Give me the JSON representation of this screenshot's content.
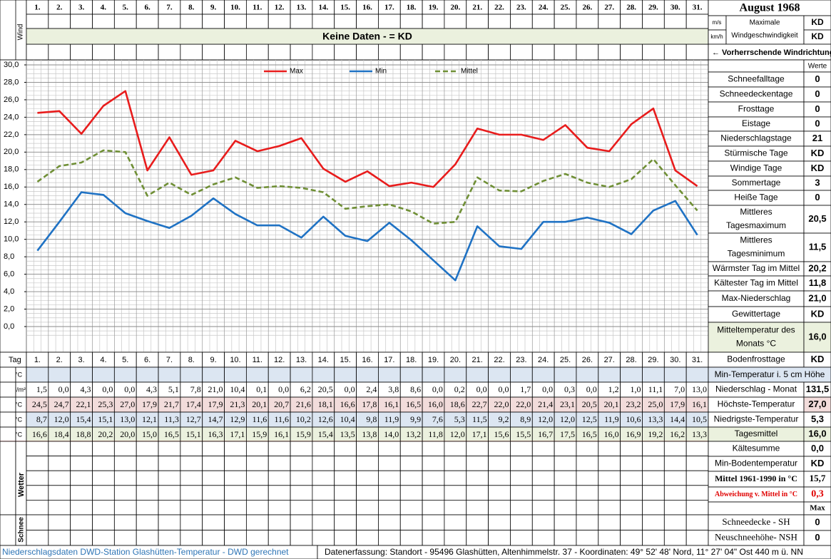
{
  "title": "August 1968",
  "wind": {
    "label": "Wind",
    "unit_ms": "m/s",
    "unit_kmh": "km/h",
    "max_label": [
      "Maximale",
      "Windgeschwindigkeit"
    ],
    "value_ms": "KD",
    "value_kmh": "KD",
    "no_data": "Keine Daten -  = KD",
    "direction": "← Vorherrschende Windrichtung"
  },
  "chart_data": {
    "type": "line",
    "categories": [
      "1.",
      "2.",
      "3.",
      "4.",
      "5.",
      "6.",
      "7.",
      "8.",
      "9.",
      "10.",
      "11.",
      "12.",
      "13.",
      "14.",
      "15.",
      "16.",
      "17.",
      "18.",
      "19.",
      "20.",
      "21.",
      "22.",
      "23.",
      "24.",
      "25.",
      "26.",
      "27.",
      "28.",
      "29.",
      "30.",
      "31."
    ],
    "series": [
      {
        "name": "Max",
        "color": "#e81c1c",
        "dash": false,
        "values": [
          24.5,
          24.7,
          22.1,
          25.3,
          27.0,
          17.9,
          21.7,
          17.4,
          17.9,
          21.3,
          20.1,
          20.7,
          21.6,
          18.1,
          16.6,
          17.8,
          16.1,
          16.5,
          16.0,
          18.6,
          22.7,
          22.0,
          22.0,
          21.4,
          23.1,
          20.5,
          20.1,
          23.2,
          25.0,
          17.9,
          16.1
        ],
        "value_labels": [
          "24,5",
          "24,7",
          "22,1",
          "25,3",
          "27,0",
          "17,9",
          "21,7",
          "17,4",
          "17,9",
          "21,3",
          "20,1",
          "20,7",
          "21,6",
          "18,1",
          "16,6",
          "17,8",
          "16,1",
          "16,5",
          "16,0",
          "18,6",
          "22,7",
          "22,0",
          "22,0",
          "21,4",
          "23,1",
          "20,5",
          "20,1",
          "23,2",
          "25,0",
          "17,9",
          "16,1"
        ]
      },
      {
        "name": "Min",
        "color": "#1f72c4",
        "dash": false,
        "values": [
          8.7,
          12.0,
          15.4,
          15.1,
          13.0,
          12.1,
          11.3,
          12.7,
          14.7,
          12.9,
          11.6,
          11.6,
          10.2,
          12.6,
          10.4,
          9.8,
          11.9,
          9.9,
          7.6,
          5.3,
          11.5,
          9.2,
          8.9,
          12.0,
          12.0,
          12.5,
          11.9,
          10.6,
          13.3,
          14.4,
          10.5
        ],
        "value_labels": [
          "8,7",
          "12,0",
          "15,4",
          "15,1",
          "13,0",
          "12,1",
          "11,3",
          "12,7",
          "14,7",
          "12,9",
          "11,6",
          "11,6",
          "10,2",
          "12,6",
          "10,4",
          "9,8",
          "11,9",
          "9,9",
          "7,6",
          "5,3",
          "11,5",
          "9,2",
          "8,9",
          "12,0",
          "12,0",
          "12,5",
          "11,9",
          "10,6",
          "13,3",
          "14,4",
          "10,5"
        ]
      },
      {
        "name": "Mittel",
        "color": "#6f8f35",
        "dash": true,
        "values": [
          16.6,
          18.4,
          18.8,
          20.2,
          20.0,
          15.0,
          16.5,
          15.1,
          16.3,
          17.1,
          15.9,
          16.1,
          15.9,
          15.4,
          13.5,
          13.8,
          14.0,
          13.2,
          11.8,
          12.0,
          17.1,
          15.6,
          15.5,
          16.7,
          17.5,
          16.5,
          16.0,
          16.9,
          19.2,
          16.2,
          13.3
        ],
        "value_labels": [
          "16,6",
          "18,4",
          "18,8",
          "20,2",
          "20,0",
          "15,0",
          "16,5",
          "15,1",
          "16,3",
          "17,1",
          "15,9",
          "16,1",
          "15,9",
          "15,4",
          "13,5",
          "13,8",
          "14,0",
          "13,2",
          "11,8",
          "12,0",
          "17,1",
          "15,6",
          "15,5",
          "16,7",
          "17,5",
          "16,5",
          "16,0",
          "16,9",
          "19,2",
          "16,2",
          "13,3"
        ]
      }
    ],
    "ylim": [
      0,
      30
    ],
    "yticks": [
      {
        "value": 0,
        "label": "0,0"
      },
      {
        "value": 2,
        "label": "2,0"
      },
      {
        "value": 4,
        "label": "4,0"
      },
      {
        "value": 6,
        "label": "6,0"
      },
      {
        "value": 8,
        "label": "8,0"
      },
      {
        "value": 10,
        "label": "10,0"
      },
      {
        "value": 12,
        "label": "12,0"
      },
      {
        "value": 14,
        "label": "14,0"
      },
      {
        "value": 16,
        "label": "16,0"
      },
      {
        "value": 18,
        "label": "18,0"
      },
      {
        "value": 20,
        "label": "20,0"
      },
      {
        "value": 22,
        "label": "22,0"
      },
      {
        "value": 24,
        "label": "24,0"
      },
      {
        "value": 26,
        "label": "26,0"
      },
      {
        "value": 28,
        "label": "28,0"
      },
      {
        "value": 30,
        "label": "30,0"
      }
    ],
    "grid": true,
    "legend": "top"
  },
  "rows": {
    "tag": "Tag",
    "unit_c": "°C",
    "unit_precip": "l/m²",
    "precip": [
      "1,5",
      "0,0",
      "4,3",
      "0,0",
      "0,0",
      "4,3",
      "5,1",
      "7,8",
      "21,0",
      "10,4",
      "0,1",
      "0,0",
      "6,2",
      "20,5",
      "0,0",
      "2,4",
      "3,8",
      "8,6",
      "0,0",
      "0,2",
      "0,0",
      "0,0",
      "1,7",
      "0,0",
      "0,3",
      "0,0",
      "1,2",
      "1,0",
      "11,1",
      "7,0",
      "13,0"
    ],
    "wetter": "Wetter",
    "schnee": "Schnee"
  },
  "panel": {
    "werte": "Werte",
    "stats": [
      {
        "label": [
          "Schneefalltage"
        ],
        "value": "0"
      },
      {
        "label": [
          "Schneedeckentage"
        ],
        "value": "0"
      },
      {
        "label": [
          "Frosttage"
        ],
        "value": "0"
      },
      {
        "label": [
          "Eistage"
        ],
        "value": "0"
      },
      {
        "label": [
          "Niederschlagstage"
        ],
        "value": "21"
      },
      {
        "label": [
          "Stürmische Tage"
        ],
        "value": "KD"
      },
      {
        "label": [
          "Windige Tage"
        ],
        "value": "KD"
      },
      {
        "label": [
          "Sommertage"
        ],
        "value": "3"
      },
      {
        "label": [
          "Heiße Tage"
        ],
        "value": "0"
      },
      {
        "label": [
          "Mittleres",
          "Tagesmaximum"
        ],
        "value": "20,5"
      },
      {
        "label": [
          "Mittleres",
          "Tagesminimum"
        ],
        "value": "11,5"
      },
      {
        "label": [
          "Wärmster Tag im Mittel"
        ],
        "value": "20,2"
      },
      {
        "label": [
          "Kältester Tag im Mittel"
        ],
        "value": "11,8"
      },
      {
        "label": [
          "Max-Niederschlag"
        ],
        "value": "21,0"
      },
      {
        "label": [
          "Gewittertage"
        ],
        "value": "KD"
      },
      {
        "label": [
          "Mitteltemperatur des",
          "Monats °C"
        ],
        "value": "16,0"
      },
      {
        "label": [
          "Bodenfrosttage"
        ],
        "value": "KD"
      }
    ],
    "min5": "Min-Temperatur i. 5 cm Höhe",
    "monthly": [
      {
        "label": "Niederschlag - Monat",
        "value": "131,5"
      },
      {
        "label": "Höchste-Temperatur",
        "value": "27,0"
      },
      {
        "label": "Niedrigste-Temperatur",
        "value": "5,3"
      },
      {
        "label": "Tagesmittel",
        "value": "16,0"
      },
      {
        "label": "Kältesumme",
        "value": "0,0"
      },
      {
        "label": "Min-Bodentemperatur",
        "value": "KD"
      },
      {
        "label": "Mittel 1961-1990 in °C",
        "value": "15,7"
      },
      {
        "label": "Abweichung v. Mittel in °C",
        "value": "0,3"
      }
    ],
    "max": "Max",
    "snow": [
      {
        "label": "Schneedecke -   SH",
        "value": "0"
      },
      {
        "label": "Neuschneehöhe- NSH",
        "value": "0"
      }
    ]
  },
  "footer": {
    "left": "Niederschlagsdaten DWD-Station Glashütten-Temperatur -  DWD gerechnet",
    "right": "Datenerfassung: Standort -  95496 Glashütten, Altenhimmelstr. 37 - Koordinaten:  49° 52' 48' Nord,   11° 27' 04\" Ost   440 m ü. NN"
  }
}
